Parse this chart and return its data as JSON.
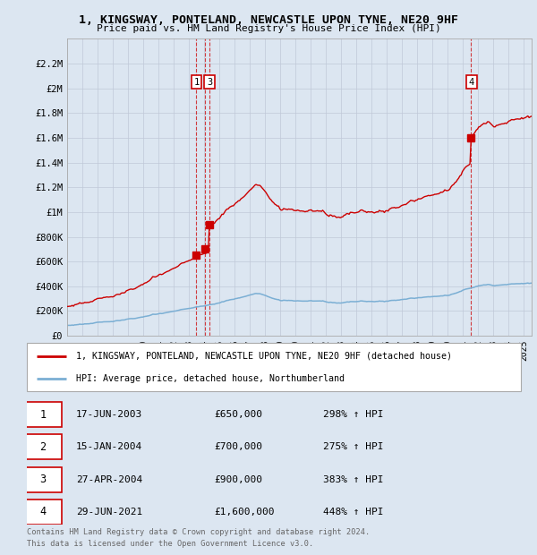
{
  "title": "1, KINGSWAY, PONTELAND, NEWCASTLE UPON TYNE, NE20 9HF",
  "subtitle": "Price paid vs. HM Land Registry's House Price Index (HPI)",
  "legend_property": "1, KINGSWAY, PONTELAND, NEWCASTLE UPON TYNE, NE20 9HF (detached house)",
  "legend_hpi": "HPI: Average price, detached house, Northumberland",
  "footnote1": "Contains HM Land Registry data © Crown copyright and database right 2024.",
  "footnote2": "This data is licensed under the Open Government Licence v3.0.",
  "transactions": [
    {
      "num": 1,
      "date": "17-JUN-2003",
      "price": 650000,
      "hpi_pct": "298%",
      "direction": "↑"
    },
    {
      "num": 2,
      "date": "15-JAN-2004",
      "price": 700000,
      "hpi_pct": "275%",
      "direction": "↑"
    },
    {
      "num": 3,
      "date": "27-APR-2004",
      "price": 900000,
      "hpi_pct": "383%",
      "direction": "↑"
    },
    {
      "num": 4,
      "date": "29-JUN-2021",
      "price": 1600000,
      "hpi_pct": "448%",
      "direction": "↑"
    }
  ],
  "vline_dates": [
    2003.46,
    2004.04,
    2004.32,
    2021.49
  ],
  "property_color": "#cc0000",
  "hpi_color": "#7bafd4",
  "background_color": "#dce6f1",
  "grid_color": "#c0c8d8",
  "ylim": [
    0,
    2400000
  ],
  "xlim": [
    1995.0,
    2025.5
  ],
  "yticks": [
    0,
    200000,
    400000,
    600000,
    800000,
    1000000,
    1200000,
    1400000,
    1600000,
    1800000,
    2000000,
    2200000
  ],
  "ytick_labels": [
    "£0",
    "£200K",
    "£400K",
    "£600K",
    "£800K",
    "£1M",
    "£1.2M",
    "£1.4M",
    "£1.6M",
    "£1.8M",
    "£2M",
    "£2.2M"
  ]
}
